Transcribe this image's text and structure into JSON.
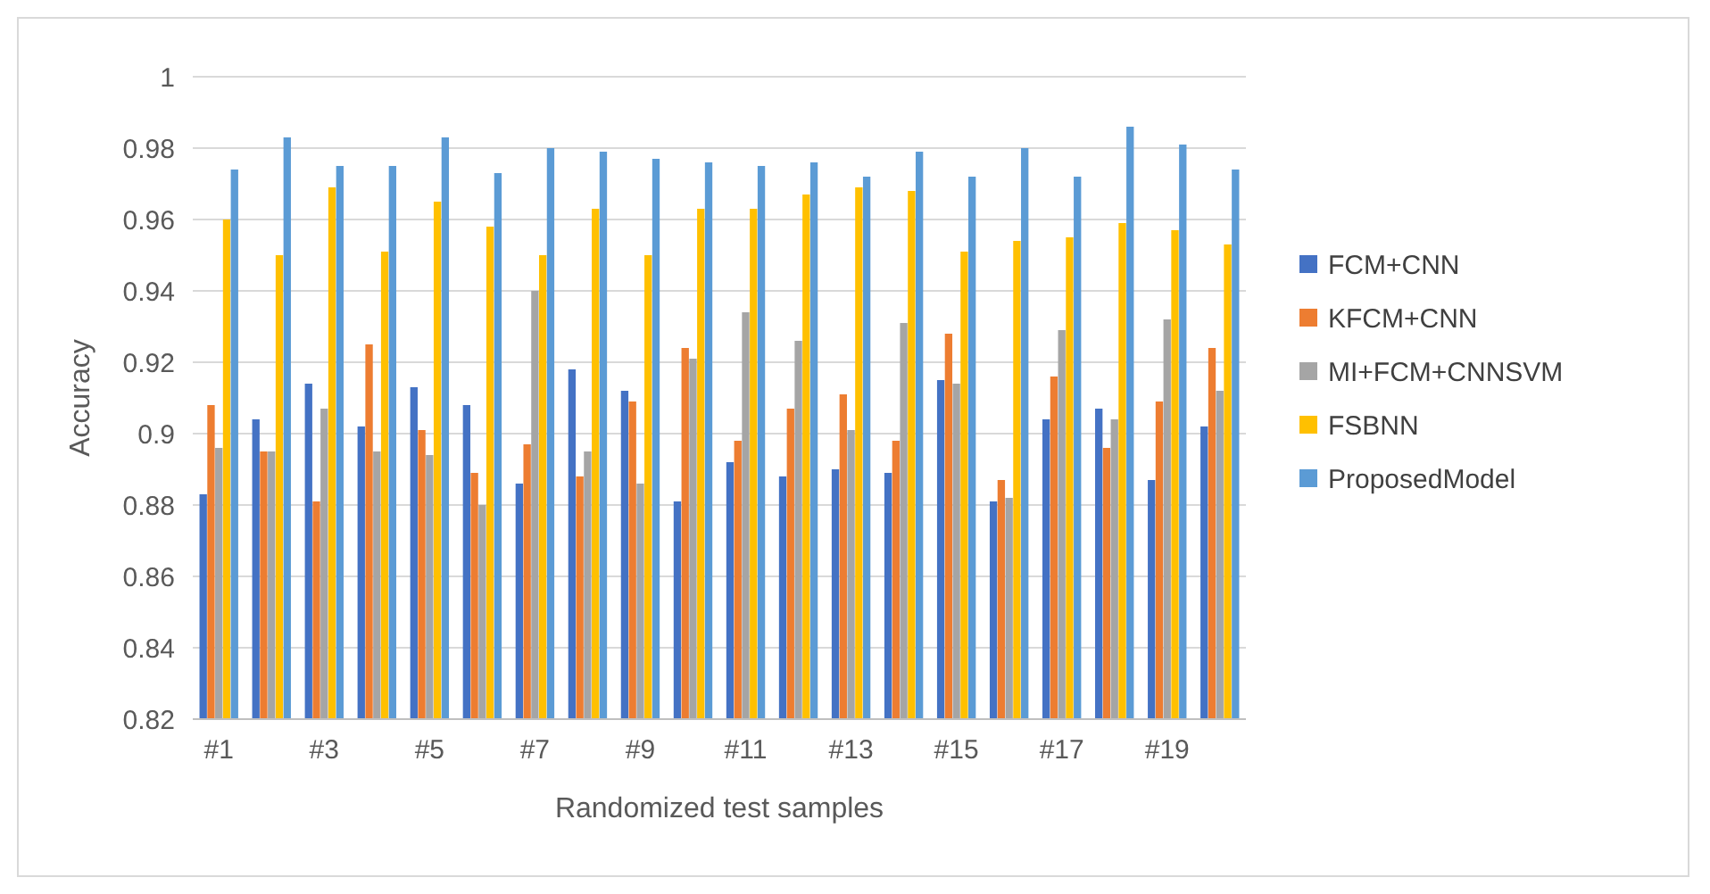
{
  "chart_data": {
    "type": "bar",
    "xlabel": "Randomized test samples",
    "ylabel": "Accuracy",
    "categories": [
      "#1",
      null,
      "#3",
      null,
      "#5",
      null,
      "#7",
      null,
      "#9",
      null,
      "#11",
      null,
      "#13",
      null,
      "#15",
      null,
      "#17",
      null,
      "#19",
      null
    ],
    "series": [
      {
        "name": "FCM+CNN",
        "color": "#4472c4",
        "values": [
          0.883,
          0.904,
          0.914,
          0.902,
          0.913,
          0.908,
          0.886,
          0.918,
          0.912,
          0.881,
          0.892,
          0.888,
          0.89,
          0.889,
          0.915,
          0.881,
          0.904,
          0.907,
          0.887,
          0.902
        ]
      },
      {
        "name": "KFCM+CNN",
        "color": "#ed7d31",
        "values": [
          0.908,
          0.895,
          0.881,
          0.925,
          0.901,
          0.889,
          0.897,
          0.888,
          0.909,
          0.924,
          0.898,
          0.907,
          0.911,
          0.898,
          0.928,
          0.887,
          0.916,
          0.896,
          0.909,
          0.924
        ]
      },
      {
        "name": "MI+FCM+CNNSVM",
        "color": "#a5a5a5",
        "values": [
          0.896,
          0.895,
          0.907,
          0.895,
          0.894,
          0.88,
          0.94,
          0.895,
          0.886,
          0.921,
          0.934,
          0.926,
          0.901,
          0.931,
          0.914,
          0.882,
          0.929,
          0.904,
          0.932,
          0.912
        ]
      },
      {
        "name": "FSBNN",
        "color": "#ffc000",
        "values": [
          0.96,
          0.95,
          0.969,
          0.951,
          0.965,
          0.958,
          0.95,
          0.963,
          0.95,
          0.963,
          0.963,
          0.967,
          0.969,
          0.968,
          0.951,
          0.954,
          0.955,
          0.959,
          0.957,
          0.953
        ]
      },
      {
        "name": "ProposedModel",
        "color": "#5b9bd5",
        "values": [
          0.974,
          0.983,
          0.975,
          0.975,
          0.983,
          0.973,
          0.98,
          0.979,
          0.977,
          0.976,
          0.975,
          0.976,
          0.972,
          0.979,
          0.972,
          0.98,
          0.972,
          0.986,
          0.981,
          0.974
        ]
      }
    ],
    "ylim": [
      0.82,
      1
    ],
    "yticks": [
      0.82,
      0.84,
      0.86,
      0.88,
      0.9,
      0.92,
      0.94,
      0.96,
      0.98,
      1
    ],
    "grid": "y",
    "legend": "right"
  }
}
